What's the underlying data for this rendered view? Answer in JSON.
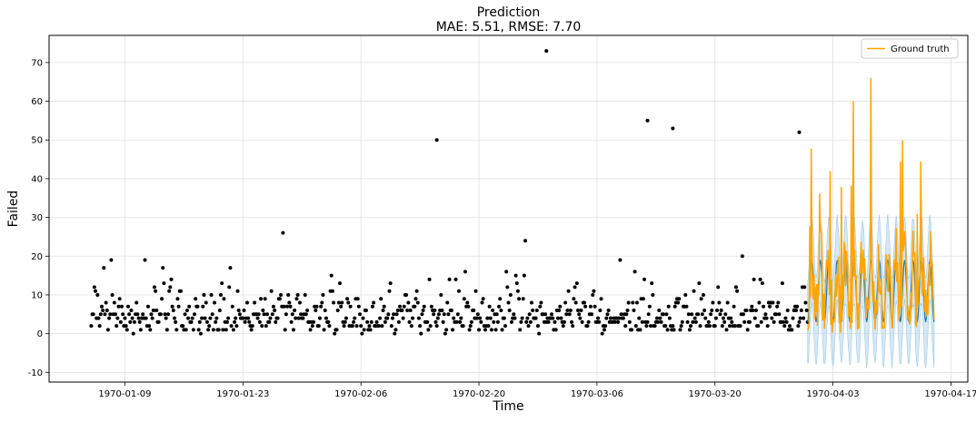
{
  "chart_data": {
    "type": "scatter",
    "title": "Prediction",
    "subtitle": "MAE: 5.51, RMSE: 7.70",
    "xlabel": "Time",
    "ylabel": "Failed",
    "x_ticks": [
      "1970-01-09",
      "1970-01-23",
      "1970-02-06",
      "1970-02-20",
      "1970-03-06",
      "1970-03-20",
      "1970-04-03",
      "1970-04-17"
    ],
    "y_ticks": [
      -10,
      0,
      10,
      20,
      30,
      40,
      50,
      60,
      70
    ],
    "xlim": [
      "1969-12-31",
      "1970-04-19"
    ],
    "ylim": [
      -12.5,
      77
    ],
    "grid": true,
    "legend_position": "top-right",
    "legend": [
      {
        "label": "Ground truth",
        "color": "#ffa500"
      }
    ],
    "series": [
      {
        "kind": "observed_points",
        "color": "#000000",
        "x_range": [
          "1970-01-05",
          "1970-03-31"
        ],
        "typical_range": [
          0,
          22
        ],
        "notable_peaks": [
          {
            "x": "1970-02-28",
            "y": 73
          },
          {
            "x": "1970-03-12",
            "y": 55
          },
          {
            "x": "1970-03-15",
            "y": 53
          },
          {
            "x": "1970-02-15",
            "y": 50
          },
          {
            "x": "1970-03-30",
            "y": 52
          }
        ]
      },
      {
        "kind": "forecast",
        "color": "#1f77b4",
        "x_range": [
          "1970-03-31",
          "1970-04-15"
        ]
      },
      {
        "kind": "forecast_interval",
        "color": "#aed4ec",
        "x_range": [
          "1970-03-31",
          "1970-04-15"
        ]
      },
      {
        "name": "Ground truth",
        "kind": "line",
        "color": "#ffa500",
        "x_range": [
          "1970-03-31",
          "1970-04-15"
        ],
        "max": 66
      }
    ]
  }
}
